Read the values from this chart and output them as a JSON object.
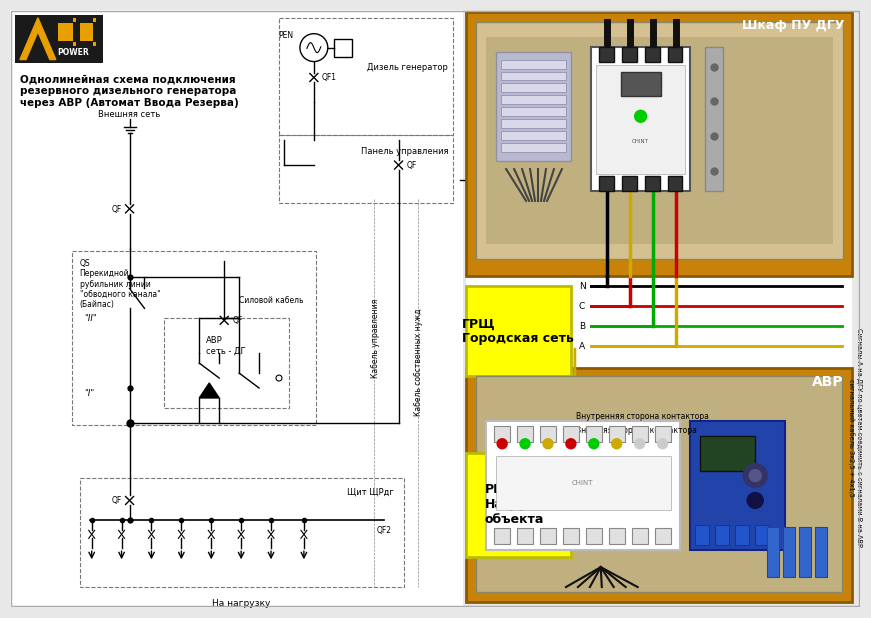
{
  "bg_color": "#e8e8e8",
  "diagram_bg": "#ffffff",
  "logo_bg": "#1a1a1a",
  "logo_accent": "#e8a000",
  "title_text": "Однолинейная схема подключения\nрезервного дизельного генератора\nчерез АВР (Автомат Ввода Резерва)",
  "shkaf_label": "Шкаф ПУ ДГУ",
  "shkaf_bg": "#c8820a",
  "avr_label": "АВР",
  "avr_bg": "#c8820a",
  "grsch_label": "ГРЩ\nГородская сеть",
  "grsch_bg": "#ffff00",
  "rsch_label": "РЩ\nНагрузка\nобъекта",
  "rsch_bg": "#ffff00",
  "phase_labels": [
    "N",
    "C",
    "B",
    "A"
  ],
  "phase_colors": [
    "#000000",
    "#cc0000",
    "#00aa00",
    "#ccaa00"
  ],
  "right_sidebar_text": "Сигналы А на ДГУ по цветам соединить с сигналами В на АВР\nсигнальный кабель 3х2,5 + 4х1,5",
  "vneshn_set_label": "Внешняя сеть",
  "dizel_gen_label": "Дизель генератор",
  "panel_uprav_label": "Панель управления",
  "sil_kabel_label": "Силовой кабель",
  "kabel_uprav_label": "Кабель управления",
  "kabel_sobstv_label": "Кабель собственных нужд",
  "avr_seti_label": "АВР\nсеть - ДГ",
  "os_label": "QS\nПерекидной\nрубильник линии\n\"обводного канала\"\n(Байпас)",
  "schit_label": "Щит ЩРдг",
  "na_nagruzku_label": "На нагрузку",
  "vnutr_kontak_label": "Внутренняя сторона контактора",
  "vnesh_kontak_label": "Внешняя сторона контактора"
}
